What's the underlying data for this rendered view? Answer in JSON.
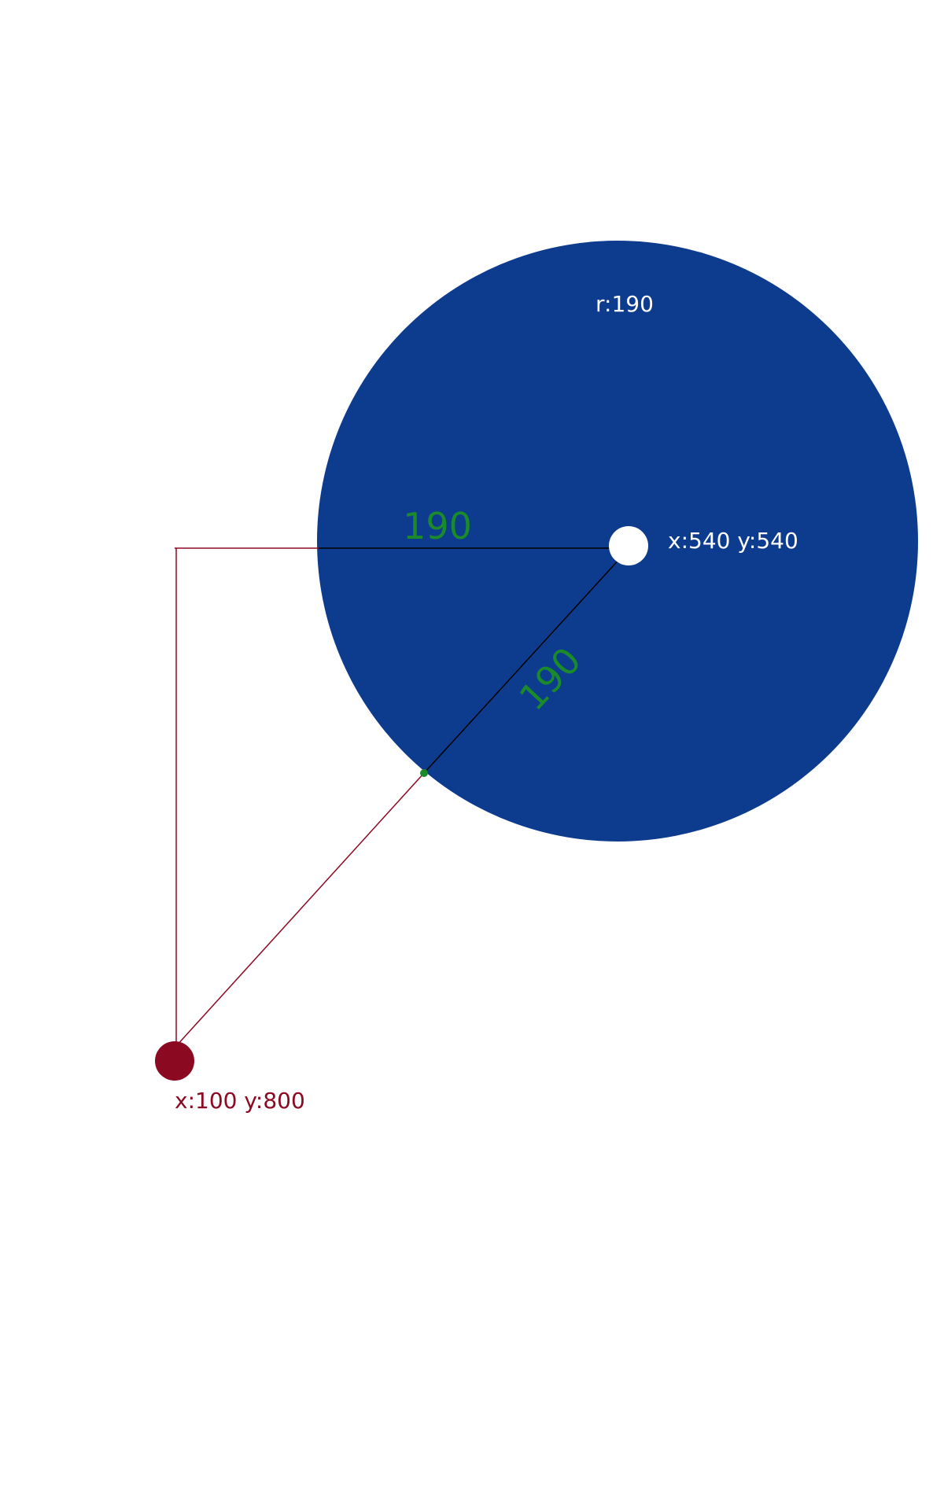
{
  "colors": {
    "circle_fill": "#0d3c8f",
    "center_dot": "#ffffff",
    "point_fill": "#8b0a22",
    "point_label": "#8b0a22",
    "guide_line": "#8b0a22",
    "radius_line": "#000000",
    "measure_text": "#1a8a2a",
    "intersection_dot": "#1a8a2a",
    "label_on_circle": "#ffffff"
  },
  "circle": {
    "radius_label": "r:190",
    "center_label": "x:540 y:540"
  },
  "point": {
    "label": "x:100 y:800"
  },
  "measures": {
    "horizontal": "190",
    "diagonal": "190"
  }
}
